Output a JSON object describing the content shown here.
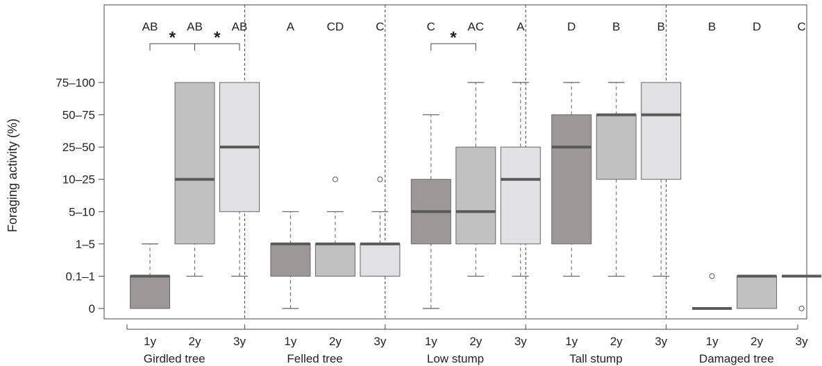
{
  "chart_data": {
    "type": "box",
    "ylabel": "Foraging activity (%)",
    "y_categories": [
      "0",
      "0.1–1",
      "1–5",
      "5–10",
      "10–25",
      "25–50",
      "50–75",
      "75–100"
    ],
    "year_labels": [
      "1y",
      "2y",
      "3y"
    ],
    "colors": {
      "1y": "#9e9797",
      "2y": "#c1c1c1",
      "3y": "#e1e0e2"
    },
    "grid": false,
    "groups": [
      {
        "name": "Girdled tree",
        "letters": [
          "AB",
          "AB",
          "AB"
        ],
        "comparisons": [
          {
            "between": [
              "1y",
              "2y"
            ],
            "label": "*"
          },
          {
            "between": [
              "2y",
              "3y"
            ],
            "label": "*"
          }
        ],
        "boxes": [
          {
            "year": "1y",
            "whisker_low": 0,
            "q1": 0,
            "median": 1,
            "q3": 1,
            "whisker_high": 2,
            "outliers": []
          },
          {
            "year": "2y",
            "whisker_low": 1,
            "q1": 2,
            "median": 4,
            "q3": 7,
            "whisker_high": 7,
            "outliers": []
          },
          {
            "year": "3y",
            "whisker_low": 1,
            "q1": 3,
            "median": 5,
            "q3": 7,
            "whisker_high": 7,
            "outliers": []
          }
        ]
      },
      {
        "name": "Felled tree",
        "letters": [
          "A",
          "CD",
          "C"
        ],
        "comparisons": [],
        "boxes": [
          {
            "year": "1y",
            "whisker_low": 0,
            "q1": 1,
            "median": 2,
            "q3": 2,
            "whisker_high": 3,
            "outliers": []
          },
          {
            "year": "2y",
            "whisker_low": 1,
            "q1": 1,
            "median": 2,
            "q3": 2,
            "whisker_high": 3,
            "outliers": [
              4
            ]
          },
          {
            "year": "3y",
            "whisker_low": 1,
            "q1": 1,
            "median": 2,
            "q3": 2,
            "whisker_high": 3,
            "outliers": [
              4
            ]
          }
        ]
      },
      {
        "name": "Low stump",
        "letters": [
          "C",
          "AC",
          "A"
        ],
        "comparisons": [
          {
            "between": [
              "1y",
              "2y"
            ],
            "label": "*"
          }
        ],
        "boxes": [
          {
            "year": "1y",
            "whisker_low": 0,
            "q1": 2,
            "median": 3,
            "q3": 4,
            "whisker_high": 6,
            "outliers": []
          },
          {
            "year": "2y",
            "whisker_low": 1,
            "q1": 2,
            "median": 3,
            "q3": 5,
            "whisker_high": 7,
            "outliers": []
          },
          {
            "year": "3y",
            "whisker_low": 1,
            "q1": 2,
            "median": 4,
            "q3": 5,
            "whisker_high": 7,
            "outliers": []
          }
        ]
      },
      {
        "name": "Tall stump",
        "letters": [
          "D",
          "B",
          "B"
        ],
        "comparisons": [],
        "boxes": [
          {
            "year": "1y",
            "whisker_low": 1,
            "q1": 2,
            "median": 5,
            "q3": 6,
            "whisker_high": 7,
            "outliers": []
          },
          {
            "year": "2y",
            "whisker_low": 1,
            "q1": 4,
            "median": 6,
            "q3": 6,
            "whisker_high": 7,
            "outliers": []
          },
          {
            "year": "3y",
            "whisker_low": 1,
            "q1": 4,
            "median": 6,
            "q3": 7,
            "whisker_high": 7,
            "outliers": []
          }
        ]
      },
      {
        "name": "Damaged tree",
        "letters": [
          "B",
          "D",
          "C"
        ],
        "comparisons": [],
        "boxes": [
          {
            "year": "1y",
            "whisker_low": 0,
            "q1": 0,
            "median": 0,
            "q3": 0,
            "whisker_high": 0,
            "outliers": [
              1
            ]
          },
          {
            "year": "2y",
            "whisker_low": 0,
            "q1": 0,
            "median": 1,
            "q3": 1,
            "whisker_high": 1,
            "outliers": []
          },
          {
            "year": "3y",
            "whisker_low": 1,
            "q1": 1,
            "median": 1,
            "q3": 1,
            "whisker_high": 1,
            "outliers": [
              0
            ]
          }
        ]
      }
    ]
  }
}
